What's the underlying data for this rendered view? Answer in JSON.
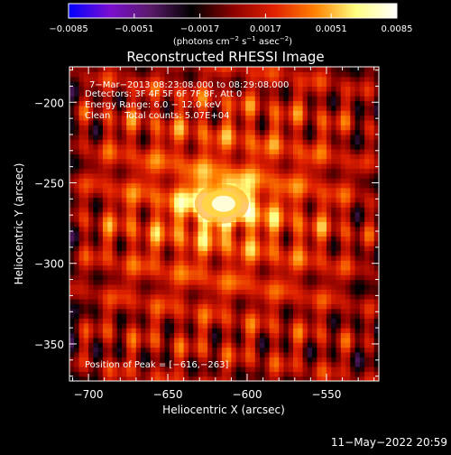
{
  "colorbar": {
    "ticks": [
      "−0.0085",
      "−0.0051",
      "−0.0017",
      "0.0017",
      "0.0051",
      "0.0085"
    ],
    "unit_label_prefix": "(photons cm",
    "unit_label_exp1": "−2",
    "unit_label_mid": " s",
    "unit_label_exp2": "−1",
    "unit_label_mid2": " asec",
    "unit_label_exp3": "−2",
    "unit_label_suffix": ")",
    "range": [
      -0.0085,
      0.0085
    ],
    "colormap_stops": [
      "#0000ff",
      "#7a0ed0",
      "#5a1a6a",
      "#000000",
      "#8b0000",
      "#e02000",
      "#ff8000",
      "#ffff80",
      "#ffffff"
    ]
  },
  "annotations": {
    "line1": "7−Mar−2013 08:23:08.000 to 08:29:08.000",
    "line2": "Detectors: 3F 4F 5F 6F 7F 8F, Att 0",
    "line3": "Energy Range: 6.0 − 12.0 keV",
    "line4": "Clean     Total counts: 5.07E+04",
    "peak": "Position of Peak = [−616,−263]"
  },
  "footer": {
    "timestamp": "11−May−2022 20:59"
  },
  "chart_data": {
    "type": "heatmap",
    "title": "Reconstructed RHESSI Image",
    "xlabel": "Heliocentric X (arcsec)",
    "ylabel": "Heliocentric Y (arcsec)",
    "xlim": [
      -712,
      -517
    ],
    "ylim": [
      -373,
      -178
    ],
    "x_ticks": [
      -700,
      -650,
      -600,
      -550
    ],
    "y_ticks": [
      -350,
      -300,
      -250,
      -200
    ],
    "x_tick_labels": [
      "−700",
      "−650",
      "−600",
      "−550"
    ],
    "y_tick_labels": [
      "−350",
      "−300",
      "−250",
      "−200"
    ],
    "peak": {
      "x": -616,
      "y": -263,
      "value": 0.0085
    },
    "value_range": [
      -0.0085,
      0.0085
    ],
    "colormap": "rhessi-diverging (blue-purple-black-red-orange-yellow-white)"
  }
}
